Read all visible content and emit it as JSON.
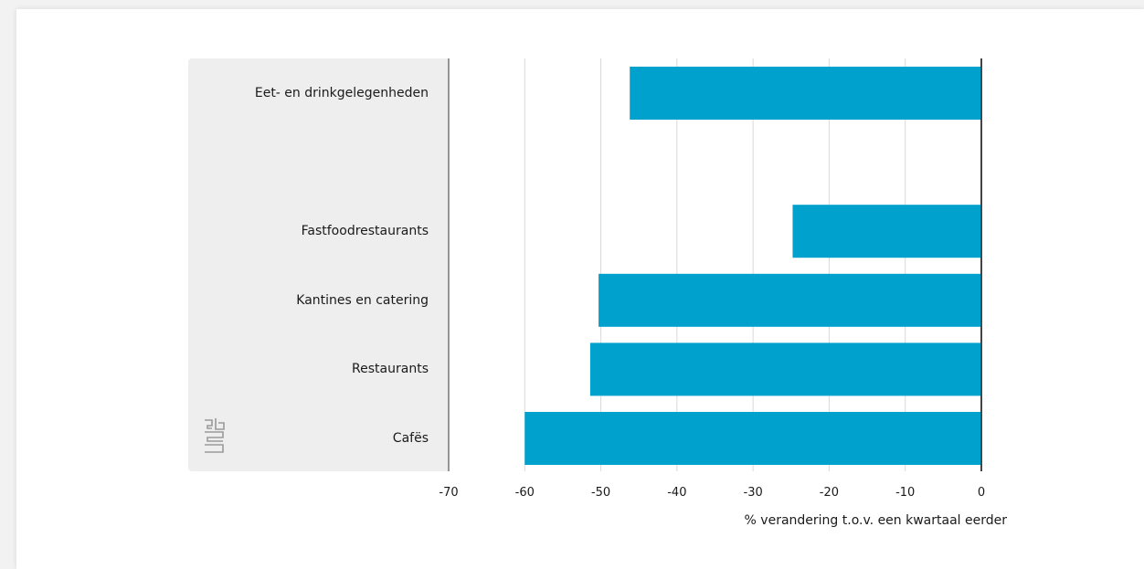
{
  "chart_data": {
    "type": "bar",
    "orientation": "horizontal",
    "categories": [
      "Eet- en drinkgelegenheden",
      "",
      "Fastfoodrestaurants",
      "Kantines en catering",
      "Restaurants",
      "Cafës"
    ],
    "values": [
      -46.2,
      null,
      -24.8,
      -50.3,
      -51.4,
      -60.0
    ],
    "xlabel": "% verandering t.o.v. een kwartaal eerder",
    "xlim": [
      -70,
      0
    ],
    "xticks": [
      -70,
      -60,
      -50,
      -40,
      -30,
      -20,
      -10,
      0
    ],
    "grid": true,
    "bar_color": "#00a1cd"
  }
}
